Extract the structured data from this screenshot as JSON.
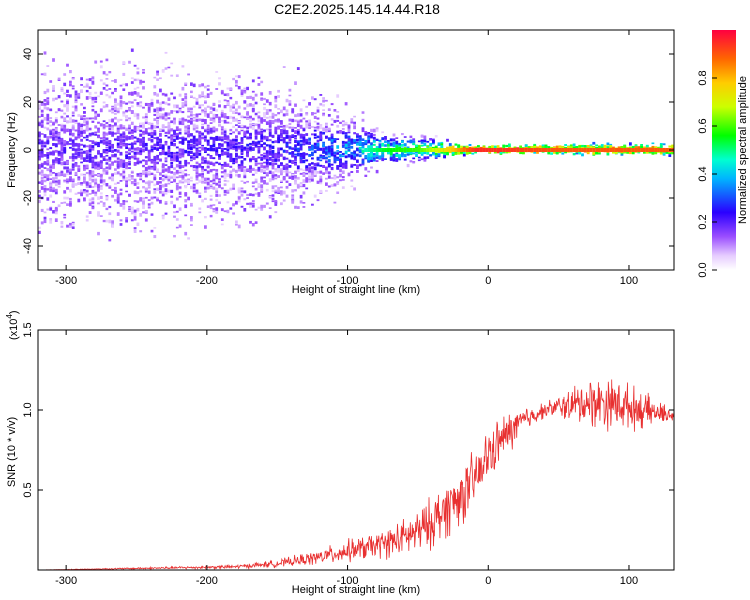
{
  "title": "C2E2.2025.145.14.44.R18",
  "chart_data": [
    {
      "type": "heatmap",
      "xlabel": "Height of straight line (km)",
      "ylabel": "Frequency (Hz)",
      "xlim": [
        -320,
        132
      ],
      "ylim": [
        -50,
        50
      ],
      "x_ticks": [
        "-300",
        "-200",
        "-100",
        "0",
        "100"
      ],
      "y_ticks": [
        "-40",
        "-20",
        "0",
        "20",
        "40"
      ],
      "colorbar": {
        "label": "Normalized spectral amplitude",
        "range": [
          0,
          1
        ],
        "ticks": [
          "0.0",
          "0.2",
          "0.4",
          "0.6",
          "0.8"
        ]
      },
      "ridge": {
        "x": [
          -320,
          -250,
          -150,
          -100,
          -75,
          -50,
          -25,
          -10,
          0,
          50,
          132
        ],
        "center_hz": [
          0,
          0,
          0,
          0,
          0,
          0,
          0,
          0,
          0,
          0,
          0
        ],
        "amplitude": [
          0.2,
          0.22,
          0.25,
          0.4,
          0.55,
          0.6,
          0.8,
          0.95,
          0.95,
          0.9,
          0.9
        ],
        "spread_hz": [
          45,
          45,
          40,
          22,
          10,
          8,
          4,
          2,
          2,
          3,
          3
        ]
      },
      "grid": false
    },
    {
      "type": "line",
      "xlabel": "Height of straight line (km)",
      "ylabel": "SNR (10 * v/v)",
      "scale_label": "(x10",
      "scale_exp": "4",
      "xlim": [
        -320,
        132
      ],
      "ylim": [
        0,
        1.5
      ],
      "x_ticks": [
        "-300",
        "-200",
        "-100",
        "0",
        "100"
      ],
      "y_ticks": [
        "0.5",
        "1.0",
        "1.5"
      ],
      "series": [
        {
          "color": "#e83030",
          "x": [
            -320,
            -250,
            -180,
            -150,
            -120,
            -100,
            -80,
            -60,
            -45,
            -35,
            -25,
            -15,
            -5,
            0,
            10,
            20,
            30,
            40,
            50,
            60,
            70,
            80,
            90,
            100,
            110,
            120,
            132
          ],
          "y": [
            0.0,
            0.01,
            0.02,
            0.04,
            0.08,
            0.12,
            0.15,
            0.2,
            0.26,
            0.34,
            0.42,
            0.5,
            0.62,
            0.72,
            0.82,
            0.9,
            0.96,
            1.0,
            1.02,
            1.03,
            1.05,
            1.05,
            1.04,
            1.02,
            1.0,
            0.98,
            0.97
          ],
          "noise": [
            0.0,
            0.005,
            0.01,
            0.02,
            0.04,
            0.06,
            0.07,
            0.1,
            0.13,
            0.15,
            0.16,
            0.16,
            0.15,
            0.14,
            0.12,
            0.1,
            0.06,
            0.04,
            0.06,
            0.1,
            0.13,
            0.14,
            0.14,
            0.12,
            0.1,
            0.06,
            0.04
          ]
        }
      ]
    }
  ]
}
